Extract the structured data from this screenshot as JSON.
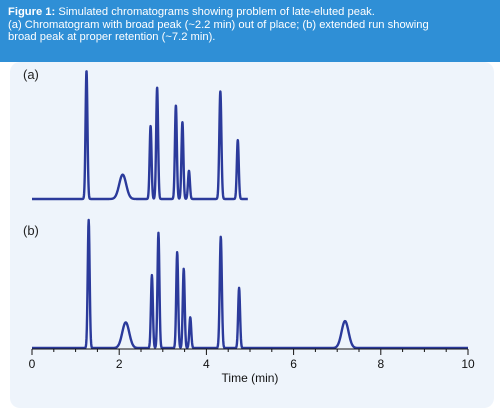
{
  "caption": {
    "label": "Figure 1:",
    "line1": "Simulated chromatograms showing problem of late-eluted peak.",
    "line2": "(a) Chromatogram with broad peak (~2.2 min) out of place; (b) extended run showing",
    "line3": "broad peak at proper retention (~7.2 min).",
    "background": "#2f8fd6"
  },
  "chart_data": {
    "type": "line",
    "line_color": "#2b3a9b",
    "panel_background": "#eef4fb",
    "xlabel": "Time (min)",
    "xlim": [
      0,
      10
    ],
    "xticks": [
      0,
      2,
      4,
      6,
      8,
      10
    ],
    "grid": false,
    "series": [
      {
        "label": "(a)",
        "x_end": 4.95,
        "peaks": [
          {
            "time": 1.25,
            "height": 1.0,
            "width": 0.022
          },
          {
            "time": 2.08,
            "height": 0.19,
            "width": 0.08
          },
          {
            "time": 2.72,
            "height": 0.57,
            "width": 0.022
          },
          {
            "time": 2.87,
            "height": 0.87,
            "width": 0.022
          },
          {
            "time": 3.3,
            "height": 0.73,
            "width": 0.022
          },
          {
            "time": 3.45,
            "height": 0.6,
            "width": 0.022
          },
          {
            "time": 3.6,
            "height": 0.22,
            "width": 0.022
          },
          {
            "time": 4.32,
            "height": 0.84,
            "width": 0.024
          },
          {
            "time": 4.72,
            "height": 0.46,
            "width": 0.022
          }
        ]
      },
      {
        "label": "(b)",
        "x_end": 10,
        "peaks": [
          {
            "time": 1.3,
            "height": 1.0,
            "width": 0.022
          },
          {
            "time": 2.15,
            "height": 0.2,
            "width": 0.08
          },
          {
            "time": 2.75,
            "height": 0.57,
            "width": 0.022
          },
          {
            "time": 2.9,
            "height": 0.9,
            "width": 0.022
          },
          {
            "time": 3.33,
            "height": 0.75,
            "width": 0.022
          },
          {
            "time": 3.48,
            "height": 0.62,
            "width": 0.022
          },
          {
            "time": 3.63,
            "height": 0.24,
            "width": 0.022
          },
          {
            "time": 4.33,
            "height": 0.87,
            "width": 0.024
          },
          {
            "time": 4.75,
            "height": 0.47,
            "width": 0.022
          },
          {
            "time": 7.18,
            "height": 0.21,
            "width": 0.08
          }
        ]
      }
    ]
  }
}
